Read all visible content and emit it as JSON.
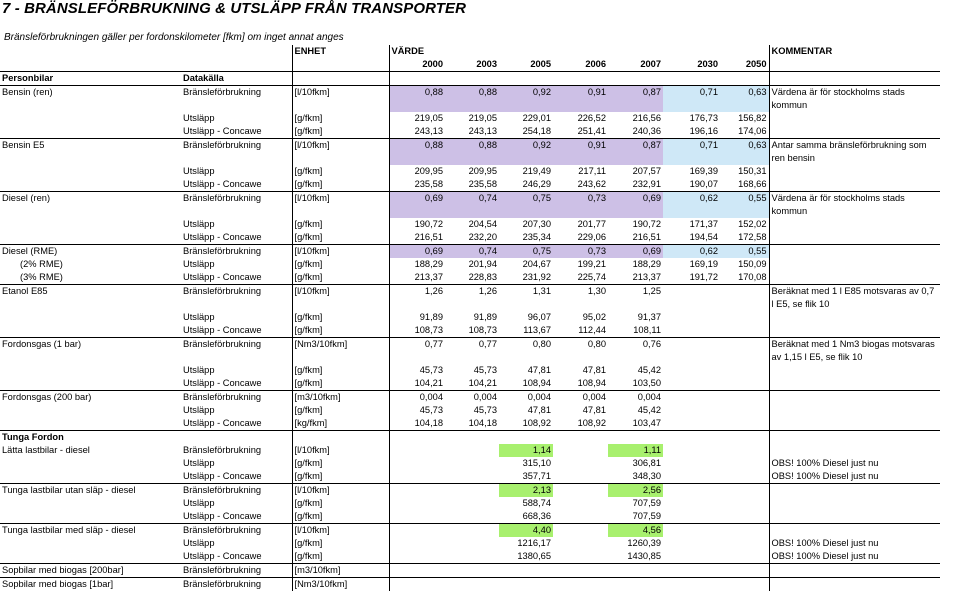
{
  "title": "7 - BRÄNSLEFÖRBRUKNING & UTSLÄPP FRÅN TRANSPORTER",
  "subtitle": "Bränsleförbrukningen gäller per fordonskilometer [fkm] om inget annat anges",
  "headers": {
    "enhet": "ENHET",
    "varde": "VÄRDE",
    "kommentar": "KOMMENTAR",
    "years": [
      "2000",
      "2003",
      "2005",
      "2006",
      "2007",
      "2030",
      "2050"
    ]
  },
  "sections": {
    "personbilar": "Personbilar",
    "datakalla": "Datakälla",
    "tunga_fordon": "Tunga Fordon"
  },
  "rows": [
    {
      "label": "Bensin (ren)",
      "type": "Bränsleförbrukning",
      "unit": "[l/10fkm]",
      "values": [
        "0,88",
        "0,88",
        "0,92",
        "0,91",
        "0,87",
        "0,71",
        "0,63"
      ],
      "comment": "Värdena är för stockholms stads kommun"
    },
    {
      "label": "",
      "type": "Utsläpp",
      "unit": "[g/fkm]",
      "values": [
        "219,05",
        "219,05",
        "229,01",
        "226,52",
        "216,56",
        "176,73",
        "156,82"
      ],
      "comment": ""
    },
    {
      "label": "",
      "type": "Utsläpp - Concawe",
      "unit": "[g/fkm]",
      "values": [
        "243,13",
        "243,13",
        "254,18",
        "251,41",
        "240,36",
        "196,16",
        "174,06"
      ],
      "comment": ""
    },
    {
      "label": "Bensin E5",
      "type": "Bränsleförbrukning",
      "unit": "[l/10fkm]",
      "values": [
        "0,88",
        "0,88",
        "0,92",
        "0,91",
        "0,87",
        "0,71",
        "0,63"
      ],
      "comment": "Antar samma bränsleförbrukning som ren bensin"
    },
    {
      "label": "",
      "type": "Utsläpp",
      "unit": "[g/fkm]",
      "values": [
        "209,95",
        "209,95",
        "219,49",
        "217,11",
        "207,57",
        "169,39",
        "150,31"
      ],
      "comment": ""
    },
    {
      "label": "",
      "type": "Utsläpp - Concawe",
      "unit": "[g/fkm]",
      "values": [
        "235,58",
        "235,58",
        "246,29",
        "243,62",
        "232,91",
        "190,07",
        "168,66"
      ],
      "comment": ""
    },
    {
      "label": "Diesel (ren)",
      "type": "Bränsleförbrukning",
      "unit": "[l/10fkm]",
      "values": [
        "0,69",
        "0,74",
        "0,75",
        "0,73",
        "0,69",
        "0,62",
        "0,55"
      ],
      "comment": "Värdena är för stockholms stads kommun"
    },
    {
      "label": "",
      "type": "Utsläpp",
      "unit": "[g/fkm]",
      "values": [
        "190,72",
        "204,54",
        "207,30",
        "201,77",
        "190,72",
        "171,37",
        "152,02"
      ],
      "comment": ""
    },
    {
      "label": "",
      "type": "Utsläpp - Concawe",
      "unit": "[g/fkm]",
      "values": [
        "216,51",
        "232,20",
        "235,34",
        "229,06",
        "216,51",
        "194,54",
        "172,58"
      ],
      "comment": ""
    },
    {
      "label": "Diesel (RME)",
      "type": "Bränsleförbrukning",
      "unit": "[l/10fkm]",
      "values": [
        "0,69",
        "0,74",
        "0,75",
        "0,73",
        "0,69",
        "0,62",
        "0,55"
      ],
      "comment": ""
    },
    {
      "label": "(2% RME)",
      "type": "Utsläpp",
      "unit": "[g/fkm]",
      "values": [
        "188,29",
        "201,94",
        "204,67",
        "199,21",
        "188,29",
        "169,19",
        "150,09"
      ],
      "comment": ""
    },
    {
      "label": "(3% RME)",
      "type": "Utsläpp - Concawe",
      "unit": "[g/fkm]",
      "values": [
        "213,37",
        "228,83",
        "231,92",
        "225,74",
        "213,37",
        "191,72",
        "170,08"
      ],
      "comment": ""
    },
    {
      "label": "Etanol E85",
      "type": "Bränsleförbrukning",
      "unit": "[l/10fkm]",
      "values": [
        "1,26",
        "1,26",
        "1,31",
        "1,30",
        "1,25",
        "",
        ""
      ],
      "comment": "Beräknat med 1 l E85 motsvaras av 0,7 l E5, se flik 10"
    },
    {
      "label": "",
      "type": "Utsläpp",
      "unit": "[g/fkm]",
      "values": [
        "91,89",
        "91,89",
        "96,07",
        "95,02",
        "91,37",
        "",
        ""
      ],
      "comment": ""
    },
    {
      "label": "",
      "type": "Utsläpp - Concawe",
      "unit": "[g/fkm]",
      "values": [
        "108,73",
        "108,73",
        "113,67",
        "112,44",
        "108,11",
        "",
        ""
      ],
      "comment": ""
    },
    {
      "label": "Fordonsgas (1 bar)",
      "type": "Bränsleförbrukning",
      "unit": "[Nm3/10fkm]",
      "values": [
        "0,77",
        "0,77",
        "0,80",
        "0,80",
        "0,76",
        "",
        ""
      ],
      "comment": "Beräknat med 1 Nm3 biogas motsvaras av 1,15 l E5, se flik 10"
    },
    {
      "label": "",
      "type": "Utsläpp",
      "unit": "[g/fkm]",
      "values": [
        "45,73",
        "45,73",
        "47,81",
        "47,81",
        "45,42",
        "",
        ""
      ],
      "comment": ""
    },
    {
      "label": "",
      "type": "Utsläpp - Concawe",
      "unit": "[g/fkm]",
      "values": [
        "104,21",
        "104,21",
        "108,94",
        "108,94",
        "103,50",
        "",
        ""
      ],
      "comment": ""
    },
    {
      "label": "Fordonsgas (200 bar)",
      "type": "Bränsleförbrukning",
      "unit": "[m3/10fkm]",
      "values": [
        "0,004",
        "0,004",
        "0,004",
        "0,004",
        "0,004",
        "",
        ""
      ],
      "comment": ""
    },
    {
      "label": "",
      "type": "Utsläpp",
      "unit": "[g/fkm]",
      "values": [
        "45,73",
        "45,73",
        "47,81",
        "47,81",
        "45,42",
        "",
        ""
      ],
      "comment": ""
    },
    {
      "label": "",
      "type": "Utsläpp - Concawe",
      "unit": "[kg/fkm]",
      "values": [
        "104,18",
        "104,18",
        "108,92",
        "108,92",
        "103,47",
        "",
        ""
      ],
      "comment": ""
    },
    {
      "label": "Lätta lastbilar - diesel",
      "type": "Bränsleförbrukning",
      "unit": "[l/10fkm]",
      "values": [
        "",
        "",
        "1,14",
        "",
        "1,11",
        "",
        ""
      ],
      "comment": ""
    },
    {
      "label": "",
      "type": "Utsläpp",
      "unit": "[g/fkm]",
      "values": [
        "",
        "",
        "315,10",
        "",
        "306,81",
        "",
        ""
      ],
      "comment": "OBS! 100% Diesel just nu"
    },
    {
      "label": "",
      "type": "Utsläpp - Concawe",
      "unit": "[g/fkm]",
      "values": [
        "",
        "",
        "357,71",
        "",
        "348,30",
        "",
        ""
      ],
      "comment": "OBS! 100% Diesel just nu"
    },
    {
      "label": "Tunga lastbilar utan släp - diesel",
      "type": "Bränsleförbrukning",
      "unit": "[l/10fkm]",
      "values": [
        "",
        "",
        "2,13",
        "",
        "2,56",
        "",
        ""
      ],
      "comment": ""
    },
    {
      "label": "",
      "type": "Utsläpp",
      "unit": "[g/fkm]",
      "values": [
        "",
        "",
        "588,74",
        "",
        "707,59",
        "",
        ""
      ],
      "comment": ""
    },
    {
      "label": "",
      "type": "Utsläpp - Concawe",
      "unit": "[g/fkm]",
      "values": [
        "",
        "",
        "668,36",
        "",
        "707,59",
        "",
        ""
      ],
      "comment": ""
    },
    {
      "label": "Tunga lastbilar med släp - diesel",
      "type": "Bränsleförbrukning",
      "unit": "[l/10fkm]",
      "values": [
        "",
        "",
        "4,40",
        "",
        "4,56",
        "",
        ""
      ],
      "comment": ""
    },
    {
      "label": "",
      "type": "Utsläpp",
      "unit": "[g/fkm]",
      "values": [
        "",
        "",
        "1216,17",
        "",
        "1260,39",
        "",
        ""
      ],
      "comment": "OBS! 100% Diesel just nu"
    },
    {
      "label": "",
      "type": "Utsläpp - Concawe",
      "unit": "[g/fkm]",
      "values": [
        "",
        "",
        "1380,65",
        "",
        "1430,85",
        "",
        ""
      ],
      "comment": "OBS! 100% Diesel just nu"
    },
    {
      "label": "Sopbilar med biogas [200bar]",
      "type": "Bränsleförbrukning",
      "unit": "[m3/10fkm]",
      "values": [
        "",
        "",
        "",
        "",
        "",
        "",
        ""
      ],
      "comment": ""
    },
    {
      "label": "Sopbilar med biogas [1bar]",
      "type": "Bränsleförbrukning",
      "unit": "[Nm3/10fkm]",
      "values": [
        "",
        "",
        "",
        "",
        "",
        "",
        ""
      ],
      "comment": ""
    }
  ],
  "colors": {
    "purple_fill": "#cdc0e6",
    "blue_fill": "#cfe8f7",
    "green_fill": "#a8f06e"
  }
}
